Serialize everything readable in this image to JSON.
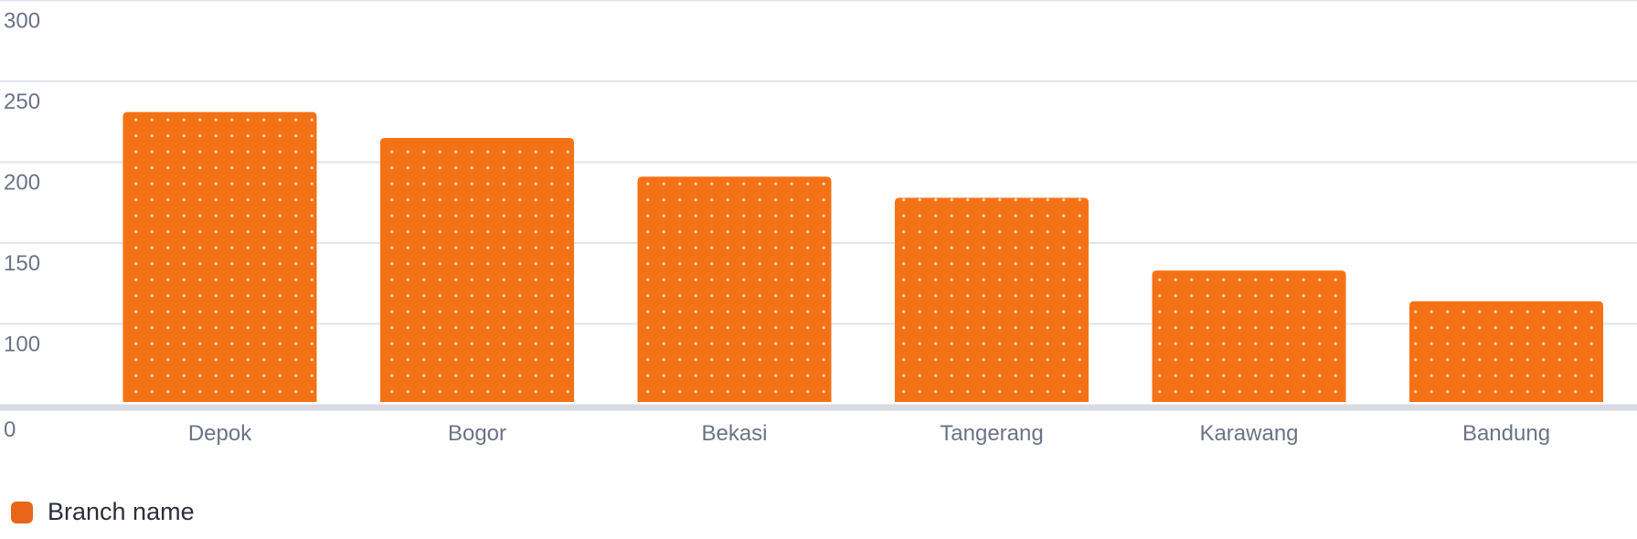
{
  "chart_data": {
    "type": "bar",
    "categories": [
      "Depok",
      "Bogor",
      "Bekasi",
      "Tangerang",
      "Karawang",
      "Bandung"
    ],
    "series": [
      {
        "name": "Branch name",
        "values": [
          231,
          215,
          191,
          178,
          133,
          114
        ]
      }
    ],
    "y_ticks": [
      0,
      100,
      150,
      200,
      250,
      300
    ],
    "ylim": [
      50,
      300
    ],
    "grid": true,
    "legend_position": "bottom-left",
    "colors": {
      "bar": "#f47216",
      "pattern_dot": "#fbd2ae",
      "legend": "#e8661a",
      "grid": "#e1e4ea",
      "baseline": "#d8dbe2"
    }
  }
}
